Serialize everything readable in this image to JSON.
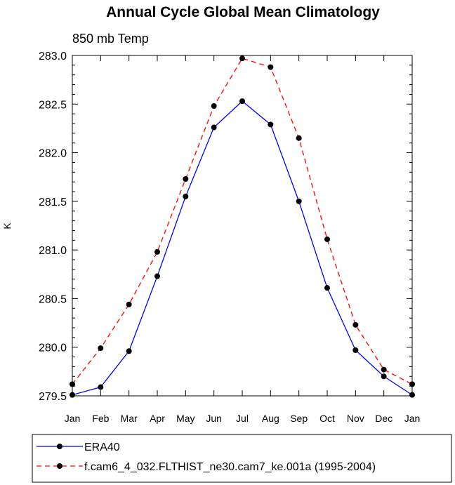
{
  "chart_data": {
    "type": "line",
    "title": "Annual Cycle Global Mean Climatology",
    "subtitle": "850 mb Temp",
    "ylabel": "K",
    "xlabel": "",
    "categories": [
      "Jan",
      "Feb",
      "Mar",
      "Apr",
      "May",
      "Jun",
      "Jul",
      "Aug",
      "Sep",
      "Oct",
      "Nov",
      "Dec",
      "Jan"
    ],
    "ylim": [
      279.5,
      283.0
    ],
    "yticks": [
      "279.5",
      "280.0",
      "280.5",
      "281.0",
      "281.5",
      "282.0",
      "282.5",
      "283.0"
    ],
    "series": [
      {
        "name": "ERA40",
        "color": "#0000ff",
        "dash": "solid",
        "values": [
          279.51,
          279.59,
          279.96,
          280.73,
          281.55,
          282.26,
          282.53,
          282.29,
          281.5,
          280.61,
          279.97,
          279.7,
          279.51
        ]
      },
      {
        "name": "f.cam6_4_032.FLTHIST_ne30.cam7_ke.001a (1995-2004)",
        "color": "#ff0000",
        "dash": "dashed",
        "values": [
          279.62,
          279.99,
          280.44,
          280.98,
          281.73,
          282.48,
          282.97,
          282.88,
          282.15,
          281.11,
          280.23,
          279.77,
          279.62
        ]
      }
    ],
    "marker_color": "#000000",
    "legend_placement": "bottom"
  }
}
